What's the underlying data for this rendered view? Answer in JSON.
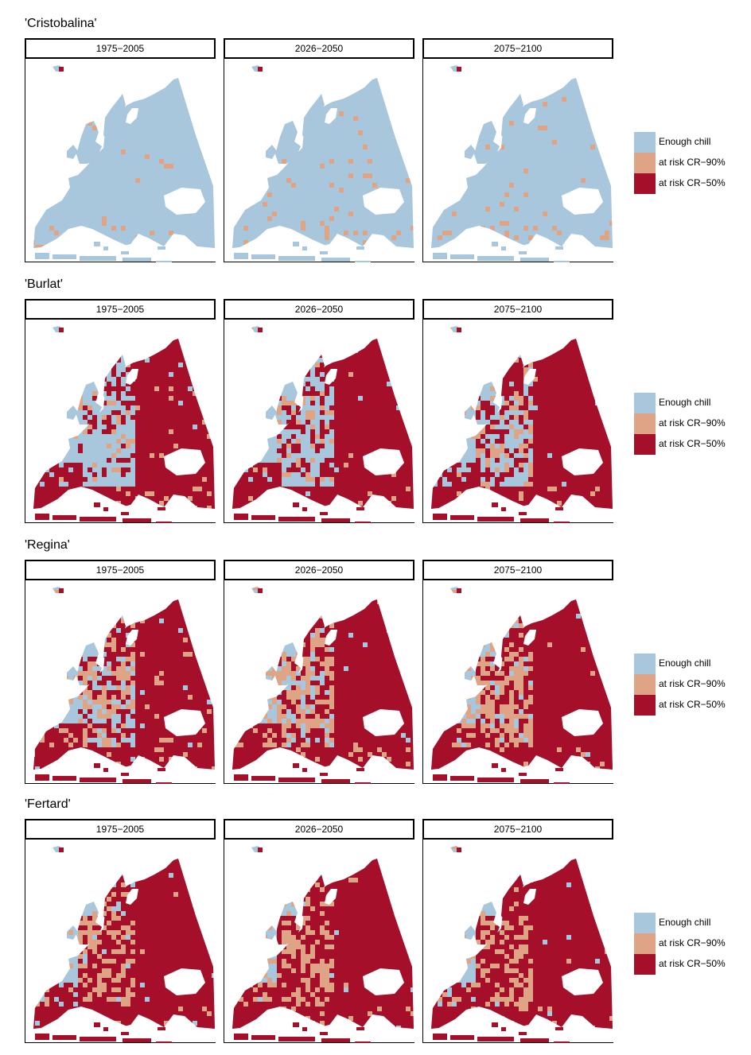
{
  "colors": {
    "enough": "#a8c6dc",
    "risk90": "#dfa486",
    "risk50": "#a50f2a"
  },
  "legend": {
    "items": [
      {
        "label": "Enough chill",
        "color": "#a8c6dc"
      },
      {
        "label": "at risk CR−90%",
        "color": "#dfa486"
      },
      {
        "label": "at risk CR−50%",
        "color": "#a50f2a"
      }
    ]
  },
  "periods": [
    "1975−2005",
    "2026−2050",
    "2075−2100"
  ],
  "cultivars": [
    {
      "name": "'Cristobalina'",
      "maps": [
        {
          "n": 0.0,
          "s": 0.0,
          "east": 0.0,
          "mid": 0.0,
          "sf": 0.02
        },
        {
          "n": 0.0,
          "s": 0.0,
          "east": 0.0,
          "mid": 0.0,
          "sf": 0.04
        },
        {
          "n": 0.0,
          "s": 0.0,
          "east": 0.0,
          "mid": 0.0,
          "sf": 0.06
        }
      ]
    },
    {
      "name": "'Burlat'",
      "maps": [
        {
          "n": 0.55,
          "s": 0.95,
          "east": 0.95,
          "mid": 0.35,
          "sf": 0.05
        },
        {
          "n": 0.6,
          "s": 1.0,
          "east": 1.0,
          "mid": 0.45,
          "sf": 0.1
        },
        {
          "n": 0.65,
          "s": 1.0,
          "east": 1.0,
          "mid": 0.55,
          "sf": 0.15
        }
      ]
    },
    {
      "name": "'Regina'",
      "maps": [
        {
          "n": 0.55,
          "s": 0.95,
          "east": 0.95,
          "mid": 0.45,
          "sf": 0.45
        },
        {
          "n": 0.6,
          "s": 1.0,
          "east": 1.0,
          "mid": 0.5,
          "sf": 0.55
        },
        {
          "n": 0.65,
          "s": 1.0,
          "east": 1.0,
          "mid": 0.6,
          "sf": 0.6
        }
      ]
    },
    {
      "name": "'Fertard'",
      "maps": [
        {
          "n": 0.75,
          "s": 1.0,
          "east": 1.0,
          "mid": 0.9,
          "sf": 0.25
        },
        {
          "n": 0.8,
          "s": 1.0,
          "east": 1.0,
          "mid": 0.9,
          "sf": 0.45
        },
        {
          "n": 0.85,
          "s": 1.0,
          "east": 1.0,
          "mid": 0.95,
          "sf": 0.3
        }
      ]
    }
  ]
}
